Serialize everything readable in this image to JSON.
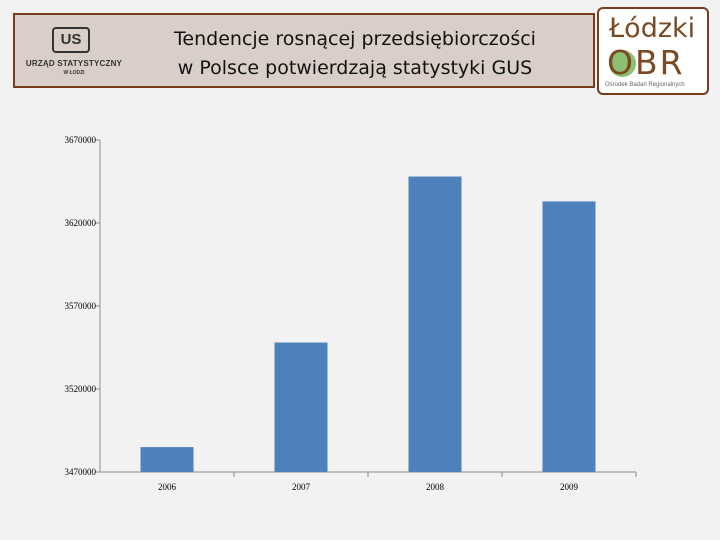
{
  "header": {
    "title_line1": "Tendencje rosnącej przedsiębiorczości",
    "title_line2": "w Polsce potwierdzają statystyki GUS",
    "left_logo": {
      "mark": "US",
      "name": "URZĄD STATYSTYCZNY",
      "city": "W ŁODZI"
    },
    "right_logo": {
      "line1": "Łódzki",
      "line2": "OBR",
      "tagline": "Ośrodek Badań Regionalnych"
    }
  },
  "colors": {
    "bar": "#4f81bd",
    "banner": "#d9cfc8",
    "border": "#7a3b1f"
  },
  "chart_data": {
    "type": "bar",
    "categories": [
      "2006",
      "2007",
      "2008",
      "2009"
    ],
    "values": [
      3485000,
      3548000,
      3648000,
      3633000
    ],
    "ylim": [
      3470000,
      3670000
    ],
    "yticks": [
      "3670000",
      "3620000",
      "3570000",
      "3520000",
      "3470000"
    ],
    "title": "",
    "xlabel": "",
    "ylabel": "",
    "grid": false,
    "legend": "none"
  }
}
